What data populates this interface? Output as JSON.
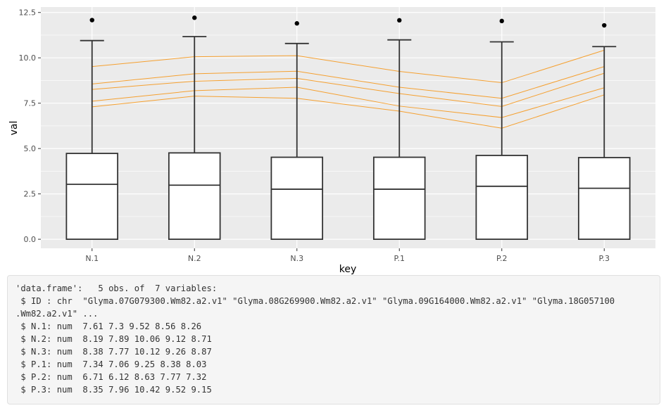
{
  "chart_data": {
    "type": "box",
    "xlabel": "key",
    "ylabel": "val",
    "ylim": [
      -0.5,
      12.8
    ],
    "y_ticks": [
      "0.0",
      "2.5",
      "5.0",
      "7.5",
      "10.0",
      "12.5"
    ],
    "y_tick_values": [
      0,
      2.5,
      5,
      7.5,
      10,
      12.5
    ],
    "categories": [
      "N.1",
      "N.2",
      "N.3",
      "P.1",
      "P.2",
      "P.3"
    ],
    "grid": true,
    "colors": {
      "panel": "#ebebeb",
      "grid": "#ffffff",
      "box": "#333333",
      "lines": "#f5a030",
      "outlier": "#000000"
    },
    "boxes": [
      {
        "category": "N.1",
        "lower_whisker": 0,
        "q1": 0,
        "median": 3.03,
        "q3": 4.73,
        "upper_whisker": 10.95,
        "outliers": [
          12.08
        ]
      },
      {
        "category": "N.2",
        "lower_whisker": 0,
        "q1": 0,
        "median": 2.98,
        "q3": 4.76,
        "upper_whisker": 11.17,
        "outliers": [
          12.21
        ]
      },
      {
        "category": "N.3",
        "lower_whisker": 0,
        "q1": 0,
        "median": 2.76,
        "q3": 4.52,
        "upper_whisker": 10.79,
        "outliers": [
          11.9
        ]
      },
      {
        "category": "P.1",
        "lower_whisker": 0,
        "q1": 0,
        "median": 2.76,
        "q3": 4.52,
        "upper_whisker": 10.99,
        "outliers": [
          12.07
        ]
      },
      {
        "category": "P.2",
        "lower_whisker": 0,
        "q1": 0,
        "median": 2.92,
        "q3": 4.62,
        "upper_whisker": 10.88,
        "outliers": [
          12.03
        ]
      },
      {
        "category": "P.3",
        "lower_whisker": 0,
        "q1": 0,
        "median": 2.81,
        "q3": 4.5,
        "upper_whisker": 10.62,
        "outliers": [
          11.79
        ]
      }
    ],
    "series": [
      {
        "values": [
          7.61,
          8.19,
          8.38,
          7.34,
          6.71,
          8.35
        ]
      },
      {
        "values": [
          7.3,
          7.89,
          7.77,
          7.06,
          6.12,
          7.96
        ]
      },
      {
        "values": [
          9.52,
          10.06,
          10.12,
          9.25,
          8.63,
          10.42
        ]
      },
      {
        "values": [
          8.56,
          9.12,
          9.26,
          8.38,
          7.77,
          9.52
        ]
      },
      {
        "values": [
          8.26,
          8.71,
          8.87,
          8.03,
          7.32,
          9.15
        ]
      }
    ]
  },
  "console": {
    "lines": [
      "'data.frame':   5 obs. of  7 variables:",
      " $ ID : chr  \"Glyma.07G079300.Wm82.a2.v1\" \"Glyma.08G269900.Wm82.a2.v1\" \"Glyma.09G164000.Wm82.a2.v1\" \"Glyma.18G057100",
      ".Wm82.a2.v1\" ...",
      " $ N.1: num  7.61 7.3 9.52 8.56 8.26",
      " $ N.2: num  8.19 7.89 10.06 9.12 8.71",
      " $ N.3: num  8.38 7.77 10.12 9.26 8.87",
      " $ P.1: num  7.34 7.06 9.25 8.38 8.03",
      " $ P.2: num  6.71 6.12 8.63 7.77 7.32",
      " $ P.3: num  8.35 7.96 10.42 9.52 9.15"
    ]
  }
}
